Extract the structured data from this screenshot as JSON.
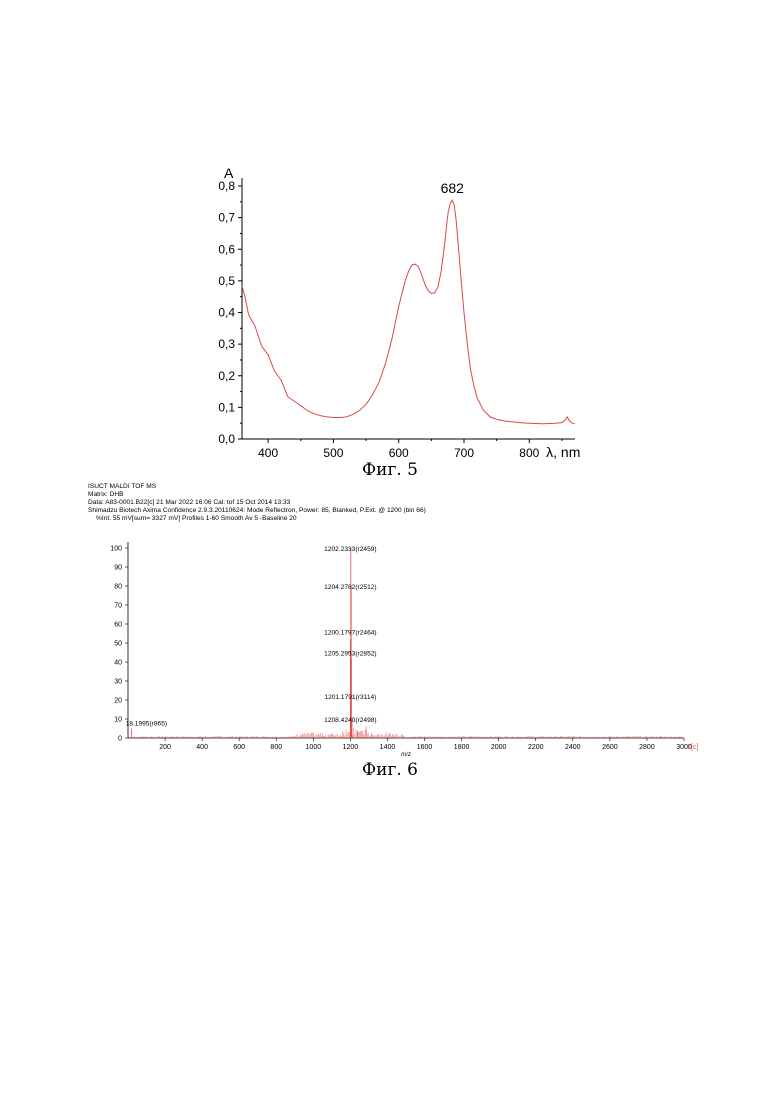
{
  "chart_data": [
    {
      "type": "line",
      "title": "",
      "xlabel": "λ, nm",
      "ylabel": "A",
      "xlim": [
        360,
        870
      ],
      "ylim": [
        0.0,
        0.8
      ],
      "x_ticks": [
        400,
        500,
        600,
        700,
        800
      ],
      "y_ticks": [
        "0,0",
        "0,1",
        "0,2",
        "0,3",
        "0,4",
        "0,5",
        "0,6",
        "0,7",
        "0,8"
      ],
      "annotation": "682",
      "line_color": "#d94a4a",
      "series": [
        {
          "x": [
            360,
            365,
            370,
            380,
            390,
            400,
            410,
            420,
            430,
            440,
            450,
            460,
            470,
            480,
            490,
            500,
            510,
            520,
            530,
            540,
            550,
            560,
            570,
            580,
            590,
            600,
            610,
            615,
            620,
            625,
            630,
            635,
            640,
            645,
            650,
            655,
            660,
            665,
            670,
            673,
            676,
            679,
            682,
            685,
            688,
            691,
            695,
            700,
            705,
            710,
            715,
            720,
            730,
            740,
            750,
            760,
            770,
            780,
            790,
            800,
            810,
            820,
            830,
            840,
            850,
            855,
            858,
            862,
            866,
            870
          ],
          "y": [
            0.49,
            0.44,
            0.4,
            0.35,
            0.3,
            0.26,
            0.22,
            0.18,
            0.14,
            0.12,
            0.105,
            0.09,
            0.08,
            0.074,
            0.07,
            0.068,
            0.068,
            0.07,
            0.078,
            0.09,
            0.11,
            0.14,
            0.18,
            0.24,
            0.32,
            0.42,
            0.5,
            0.53,
            0.55,
            0.553,
            0.545,
            0.52,
            0.49,
            0.47,
            0.46,
            0.462,
            0.48,
            0.53,
            0.61,
            0.67,
            0.72,
            0.745,
            0.755,
            0.74,
            0.69,
            0.62,
            0.52,
            0.4,
            0.3,
            0.22,
            0.17,
            0.13,
            0.09,
            0.07,
            0.062,
            0.058,
            0.055,
            0.053,
            0.051,
            0.05,
            0.049,
            0.048,
            0.049,
            0.05,
            0.052,
            0.06,
            0.07,
            0.055,
            0.05,
            0.048
          ]
        }
      ]
    },
    {
      "type": "bar",
      "title": "",
      "header_lines": [
        "ISUCT MALDI TOF MS",
        "Matrix:  DHB",
        "Data: A83-0001.B22[c] 21 Mar 2022 16:06 Cal: tof 15 Oct 2014 13:33",
        "Shimadzu Biotech Axima Confidence 2.9.3.20110624: Mode Reflectron, Power: 85, Blanked, P.Ext. @ 1200 (bin 66)",
        "%Int.              55 mV[sum= 3327 mV]  Profiles 1-60 Smooth Av 5 -Baseline 20"
      ],
      "xlabel": "m/z",
      "xlim": [
        0,
        3000
      ],
      "ylim": [
        0,
        100
      ],
      "x_ticks": [
        "200",
        "400",
        "600",
        "800",
        "1000",
        "1200",
        "1400",
        "1600",
        "1800",
        "2000",
        "2200",
        "2400",
        "2600",
        "2800",
        "3000"
      ],
      "x_unit_marker": "1[c]",
      "y_ticks": [
        "0",
        "10",
        "20",
        "30",
        "40",
        "50",
        "60",
        "70",
        "80",
        "90",
        "100"
      ],
      "line_color": "#e05050",
      "peaks": [
        {
          "mz": 18.2,
          "intensity": 5,
          "label": "18.1995(r865)"
        },
        {
          "mz": 1200.2,
          "intensity": 52,
          "label": "1200.1797(r2464)"
        },
        {
          "mz": 1201.2,
          "intensity": 20,
          "label": "1201.1791(r3114)"
        },
        {
          "mz": 1202.2,
          "intensity": 100,
          "label": "1202.2333(r2459)"
        },
        {
          "mz": 1204.3,
          "intensity": 80,
          "label": "1204.2782(r2512)"
        },
        {
          "mz": 1205.3,
          "intensity": 42,
          "label": "1205.2953(r2852)"
        },
        {
          "mz": 1208.4,
          "intensity": 10,
          "label": "1208.4240(r2498)"
        }
      ]
    }
  ],
  "captions": {
    "fig5": "Фиг. 5",
    "fig6": "Фиг. 6"
  }
}
